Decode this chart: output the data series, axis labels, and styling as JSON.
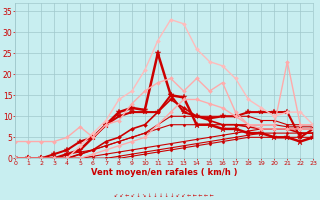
{
  "x": [
    0,
    1,
    2,
    3,
    4,
    5,
    6,
    7,
    8,
    9,
    10,
    11,
    12,
    13,
    14,
    15,
    16,
    17,
    18,
    19,
    20,
    21,
    22,
    23
  ],
  "series": [
    {
      "y": [
        0,
        0,
        0,
        0,
        0,
        0,
        0,
        0,
        0,
        0.5,
        1,
        1.5,
        2,
        2.5,
        3,
        3.5,
        4,
        4.5,
        5,
        5,
        5,
        5,
        5,
        5
      ],
      "color": "#cc0000",
      "lw": 0.8,
      "marker": "D",
      "ms": 1.5,
      "linestyle": "-"
    },
    {
      "y": [
        0,
        0,
        0,
        0,
        0,
        0,
        0,
        0,
        0.5,
        1,
        1.5,
        2,
        2.5,
        3,
        3.5,
        4,
        4.5,
        5,
        5.5,
        6,
        6,
        6,
        6,
        6
      ],
      "color": "#cc0000",
      "lw": 0.8,
      "marker": "D",
      "ms": 1.5,
      "linestyle": "-"
    },
    {
      "y": [
        0,
        0,
        0,
        0,
        0,
        0,
        0.5,
        1,
        1.5,
        2,
        2.5,
        3,
        3.5,
        4,
        4.5,
        5,
        5.5,
        6,
        6.5,
        7,
        7,
        7,
        7,
        7
      ],
      "color": "#cc0000",
      "lw": 0.8,
      "marker": "D",
      "ms": 1.5,
      "linestyle": "-"
    },
    {
      "y": [
        0,
        0,
        0,
        0,
        0,
        1,
        2,
        3,
        4,
        5,
        6,
        7,
        8,
        8,
        8,
        8,
        8,
        8,
        8,
        8,
        8,
        7.5,
        7.5,
        7.5
      ],
      "color": "#cc0000",
      "lw": 0.8,
      "marker": "D",
      "ms": 1.5,
      "linestyle": "-"
    },
    {
      "y": [
        0,
        0,
        0,
        0,
        1,
        1.5,
        2,
        3,
        4,
        5,
        6,
        8,
        10,
        10,
        10,
        10,
        10,
        10,
        10,
        9,
        9,
        8,
        8,
        8
      ],
      "color": "#cc0000",
      "lw": 0.8,
      "marker": "D",
      "ms": 1.5,
      "linestyle": "-"
    },
    {
      "y": [
        0,
        0,
        0,
        0,
        0,
        1,
        2,
        4,
        5,
        7,
        8,
        11,
        14,
        12,
        10,
        9,
        8,
        8,
        7.5,
        7,
        7,
        7,
        6,
        6
      ],
      "color": "#cc0000",
      "lw": 1.2,
      "marker": "D",
      "ms": 2,
      "linestyle": "-"
    },
    {
      "y": [
        0,
        0,
        0,
        1,
        2,
        4,
        5,
        8,
        10,
        11,
        11,
        11,
        15,
        11,
        10,
        9.5,
        10,
        10,
        11,
        11,
        11,
        11,
        5,
        7
      ],
      "color": "#cc0000",
      "lw": 1.5,
      "marker": "*",
      "ms": 4,
      "linestyle": "-"
    },
    {
      "y": [
        0,
        0,
        0,
        0,
        1,
        2,
        5,
        8,
        11,
        12,
        11.5,
        25,
        15,
        14.5,
        8,
        8,
        7,
        7,
        6,
        6,
        5,
        5,
        4,
        5
      ],
      "color": "#cc0000",
      "lw": 1.8,
      "marker": "*",
      "ms": 5,
      "linestyle": "-"
    },
    {
      "y": [
        4,
        4,
        4,
        4,
        5,
        7.5,
        5,
        8,
        9,
        13,
        16,
        18,
        19,
        16,
        19,
        16,
        18,
        11,
        8,
        8,
        8,
        23,
        8,
        8
      ],
      "color": "#ffaaaa",
      "lw": 1.0,
      "marker": "D",
      "ms": 2,
      "linestyle": "-"
    },
    {
      "y": [
        0,
        0,
        0,
        0,
        0,
        3,
        6,
        9,
        14,
        16,
        21,
        28,
        33,
        32,
        26,
        23,
        22,
        19,
        14,
        12,
        10,
        11,
        11,
        8
      ],
      "color": "#ffbbbb",
      "lw": 1.0,
      "marker": "D",
      "ms": 2,
      "linestyle": "-"
    },
    {
      "y": [
        0,
        0,
        0,
        0,
        0,
        0,
        1,
        2,
        3,
        4,
        5,
        8,
        11,
        14,
        14,
        13,
        12,
        10,
        8,
        7,
        7,
        7,
        7,
        7
      ],
      "color": "#ffaaaa",
      "lw": 1.0,
      "marker": "D",
      "ms": 2,
      "linestyle": "-"
    }
  ],
  "xlim": [
    0,
    23
  ],
  "ylim": [
    0,
    37
  ],
  "yticks": [
    0,
    5,
    10,
    15,
    20,
    25,
    30,
    35
  ],
  "xticks": [
    0,
    1,
    2,
    3,
    4,
    5,
    6,
    7,
    8,
    9,
    10,
    11,
    12,
    13,
    14,
    15,
    16,
    17,
    18,
    19,
    20,
    21,
    22,
    23
  ],
  "xlabel": "Vent moyen/en rafales ( km/h )",
  "bg_color": "#c8eef0",
  "grid_color": "#a0c8cc",
  "tick_color": "#cc0000",
  "label_color": "#cc0000"
}
